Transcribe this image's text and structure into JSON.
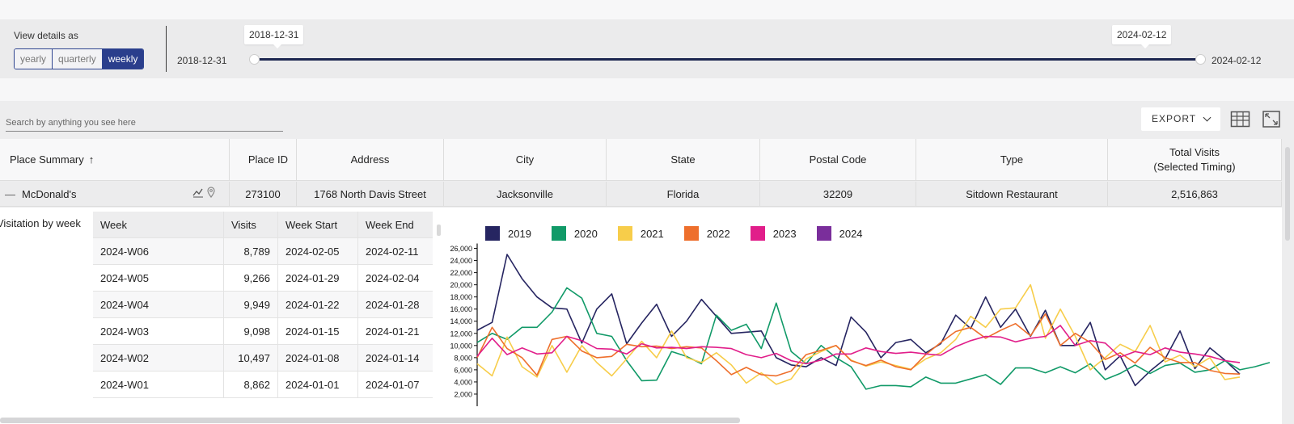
{
  "timing": {
    "view_details_label": "View details as",
    "options": [
      "yearly",
      "quarterly",
      "weekly"
    ],
    "selected": "weekly",
    "start_label": "2018-12-31",
    "end_label": "2024-02-12",
    "range_start_bubble": "2018-12-31",
    "range_end_bubble": "2024-02-12"
  },
  "toolbar": {
    "search_placeholder": "Search by anything you see here",
    "export_label": "EXPORT",
    "columns_icon": "table-columns-icon",
    "fullscreen_icon": "fullscreen-icon"
  },
  "table": {
    "columns": {
      "place_summary": "Place Summary",
      "place_id": "Place ID",
      "address": "Address",
      "city": "City",
      "state": "State",
      "postal_code": "Postal Code",
      "type": "Type",
      "total_visits_l1": "Total Visits",
      "total_visits_l2": "(Selected Timing)"
    },
    "row": {
      "name": "McDonald's",
      "place_id": "273100",
      "address": "1768 North Davis Street",
      "city": "Jacksonville",
      "state": "Florida",
      "postal_code": "32209",
      "type": "Sitdown Restaurant",
      "total_visits": "2,516,863"
    }
  },
  "visitation": {
    "label": "Visitation by week",
    "headers": {
      "week": "Week",
      "visits": "Visits",
      "week_start": "Week Start",
      "week_end": "Week End"
    },
    "rows": [
      {
        "week": "2024-W06",
        "visits": "8,789",
        "start": "2024-02-05",
        "end": "2024-02-11"
      },
      {
        "week": "2024-W05",
        "visits": "9,266",
        "start": "2024-01-29",
        "end": "2024-02-04"
      },
      {
        "week": "2024-W04",
        "visits": "9,949",
        "start": "2024-01-22",
        "end": "2024-01-28"
      },
      {
        "week": "2024-W03",
        "visits": "9,098",
        "start": "2024-01-15",
        "end": "2024-01-21"
      },
      {
        "week": "2024-W02",
        "visits": "10,497",
        "start": "2024-01-08",
        "end": "2024-01-14"
      },
      {
        "week": "2024-W01",
        "visits": "8,862",
        "start": "2024-01-01",
        "end": "2024-01-07"
      }
    ]
  },
  "colors": {
    "2019": "#262561",
    "2020": "#119a68",
    "2021": "#f7cd4a",
    "2022": "#ee6f2c",
    "2023": "#e11e8a",
    "2024": "#7a2e9b"
  },
  "chart_data": {
    "type": "line",
    "ylim": [
      0,
      27000
    ],
    "yticks": [
      "2,000",
      "4,000",
      "6,000",
      "8,000",
      "10,000",
      "12,000",
      "14,000",
      "16,000",
      "18,000",
      "20,000",
      "22,000",
      "24,000",
      "26,000"
    ],
    "ytick_values": [
      2000,
      4000,
      6000,
      8000,
      10000,
      12000,
      14000,
      16000,
      18000,
      20000,
      22000,
      24000,
      26000
    ],
    "series": [
      {
        "name": "2019",
        "values": [
          12500,
          13800,
          25000,
          21000,
          18000,
          16200,
          16000,
          10400,
          16000,
          18500,
          10300,
          13700,
          16800,
          11500,
          14000,
          17600,
          14800,
          12000,
          12200,
          12400,
          8000,
          6800,
          6500,
          8000,
          6700,
          14700,
          12200,
          8000,
          10500,
          11000,
          8800,
          10300,
          15000,
          12800,
          18000,
          13000,
          16000,
          11500,
          15800,
          10000,
          10000,
          13800,
          6000,
          8300,
          3400,
          5800,
          7800,
          12400,
          6200,
          9600,
          7600,
          5300
        ]
      },
      {
        "name": "2020",
        "values": [
          10500,
          12000,
          11000,
          13000,
          13000,
          15500,
          19500,
          17800,
          12000,
          11500,
          7500,
          4200,
          4300,
          9000,
          8200,
          7000,
          15000,
          12500,
          13500,
          9500,
          17000,
          9000,
          7000,
          10000,
          8000,
          6500,
          2800,
          3400,
          3400,
          3200,
          4800,
          3800,
          3800,
          4500,
          5200,
          3600,
          6300,
          6300,
          5500,
          6500,
          5500,
          7000,
          4400,
          5400,
          6800,
          5400,
          6700,
          7100,
          5600,
          6000,
          7500,
          6000,
          6500,
          7200
        ]
      },
      {
        "name": "2021",
        "values": [
          7000,
          5000,
          11400,
          6500,
          4800,
          10000,
          5600,
          10000,
          7200,
          5000,
          7800,
          10700,
          8000,
          12400,
          8000,
          7200,
          8800,
          6800,
          3800,
          5500,
          3600,
          4500,
          7800,
          9000,
          10000,
          7600,
          6600,
          7300,
          6700,
          6100,
          7800,
          8800,
          11000,
          14800,
          13000,
          16000,
          16200,
          20000,
          11200,
          16000,
          11500,
          6000,
          8000,
          10200,
          9000,
          13300,
          7300,
          8400,
          6500,
          8000,
          4400,
          4800
        ]
      },
      {
        "name": "2022",
        "values": [
          8000,
          13000,
          9500,
          8000,
          5100,
          11000,
          11500,
          9100,
          8000,
          8200,
          10200,
          9800,
          9900,
          9500,
          9800,
          9600,
          7500,
          5200,
          6400,
          5200,
          5000,
          5800,
          8500,
          9200,
          10000,
          7500,
          6700,
          7600,
          6500,
          6000,
          8500,
          10500,
          12300,
          13000,
          11200,
          12500,
          13600,
          11600,
          15200,
          10000,
          12000,
          10500,
          7700,
          8800,
          7100,
          9700,
          8000,
          7200,
          7200,
          5900,
          5400,
          5300
        ]
      },
      {
        "name": "2023",
        "values": [
          8200,
          11200,
          8500,
          9600,
          8600,
          8800,
          11500,
          10800,
          9500,
          9400,
          8600,
          10300,
          9600,
          9700,
          9500,
          9800,
          9700,
          9500,
          8500,
          8000,
          8700,
          7500,
          7000,
          7600,
          8600,
          8600,
          9600,
          9000,
          8700,
          8900,
          8600,
          8400,
          9800,
          10800,
          11500,
          11400,
          10600,
          11200,
          11500,
          13300,
          10000,
          10800,
          10400,
          8100,
          9000,
          8500,
          9600,
          8900,
          8600,
          8200,
          7500,
          7200
        ]
      }
    ]
  }
}
